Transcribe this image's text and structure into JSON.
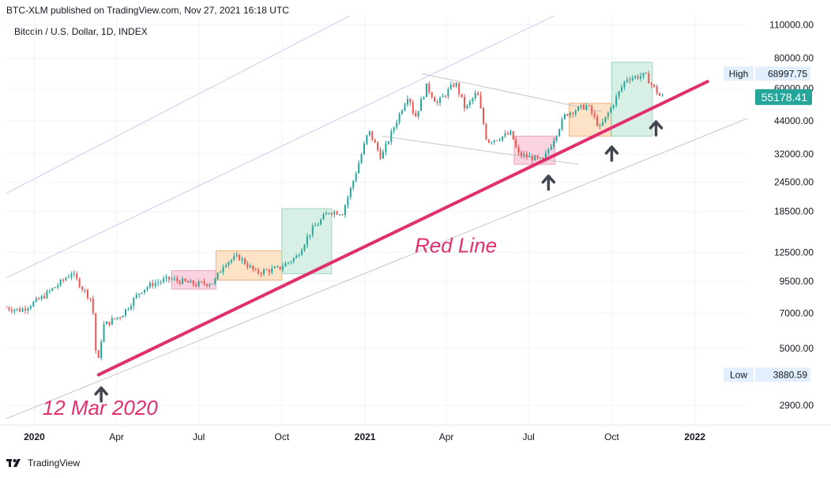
{
  "header": {
    "published_text": "BTC-XLM published on TradingView.com, Nov 27, 2021 16:18 UTC",
    "symbol_text": "Bitcoin / U.S. Dollar, 1D, INDEX"
  },
  "footer": {
    "brand": "TradingView"
  },
  "colors": {
    "up": "#26a69a",
    "down": "#ef5350",
    "trendline": "#e0306e",
    "channel_upper": "#c9cdf0",
    "channel_lower": "#c9c2d6",
    "last_price_bg": "#26a69a",
    "pink_box": "#f7c6d6",
    "orange_box": "#fbd9b5",
    "green_box": "#cbeadd"
  },
  "chart_data": {
    "type": "candlestick",
    "title": "",
    "y_scale": "log",
    "ylim": [
      2400,
      120000
    ],
    "xlim": [
      "2019-12-01",
      "2022-02-28"
    ],
    "y_ticks": [
      "110000.00",
      "80000.00",
      "60000.00",
      "44000.00",
      "32000.00",
      "24500.00",
      "18500.00",
      "12500.00",
      "9500.00",
      "7000.00",
      "5000.00",
      "2900.00"
    ],
    "x_ticks": [
      {
        "label": "2020",
        "date": "2020-01-01",
        "bold": true
      },
      {
        "label": "Apr",
        "date": "2020-04-01",
        "bold": false
      },
      {
        "label": "Jul",
        "date": "2020-07-01",
        "bold": false
      },
      {
        "label": "Oct",
        "date": "2020-10-01",
        "bold": false
      },
      {
        "label": "2021",
        "date": "2021-01-01",
        "bold": true
      },
      {
        "label": "Apr",
        "date": "2021-04-01",
        "bold": false
      },
      {
        "label": "Jul",
        "date": "2021-07-01",
        "bold": false
      },
      {
        "label": "Oct",
        "date": "2021-10-01",
        "bold": false
      },
      {
        "label": "2022",
        "date": "2022-01-01",
        "bold": true
      }
    ],
    "price_path": [
      [
        "2019-12-01",
        7400
      ],
      [
        "2019-12-20",
        7200
      ],
      [
        "2020-01-10",
        8000
      ],
      [
        "2020-02-01",
        9300
      ],
      [
        "2020-02-14",
        10300
      ],
      [
        "2020-02-28",
        8700
      ],
      [
        "2020-03-08",
        7900
      ],
      [
        "2020-03-12",
        4900
      ],
      [
        "2020-03-13",
        3900
      ],
      [
        "2020-03-20",
        6200
      ],
      [
        "2020-04-10",
        6900
      ],
      [
        "2020-05-01",
        8700
      ],
      [
        "2020-05-15",
        9300
      ],
      [
        "2020-06-01",
        9700
      ],
      [
        "2020-07-01",
        9200
      ],
      [
        "2020-07-21",
        9400
      ],
      [
        "2020-08-01",
        11300
      ],
      [
        "2020-08-17",
        12000
      ],
      [
        "2020-09-05",
        10300
      ],
      [
        "2020-09-30",
        10700
      ],
      [
        "2020-10-20",
        12000
      ],
      [
        "2020-11-05",
        15300
      ],
      [
        "2020-11-25",
        18500
      ],
      [
        "2020-12-10",
        18300
      ],
      [
        "2020-12-20",
        23500
      ],
      [
        "2021-01-08",
        40000
      ],
      [
        "2021-01-22",
        31000
      ],
      [
        "2021-02-10",
        46000
      ],
      [
        "2021-02-21",
        57000
      ],
      [
        "2021-02-28",
        45000
      ],
      [
        "2021-03-13",
        61000
      ],
      [
        "2021-03-25",
        52000
      ],
      [
        "2021-04-14",
        63500
      ],
      [
        "2021-04-25",
        49000
      ],
      [
        "2021-05-08",
        58000
      ],
      [
        "2021-05-19",
        36000
      ],
      [
        "2021-06-15",
        39000
      ],
      [
        "2021-06-22",
        32000
      ],
      [
        "2021-07-20",
        30000
      ],
      [
        "2021-08-14",
        47000
      ],
      [
        "2021-09-07",
        51000
      ],
      [
        "2021-09-21",
        41000
      ],
      [
        "2021-10-01",
        48000
      ],
      [
        "2021-10-20",
        66000
      ],
      [
        "2021-11-10",
        68000
      ],
      [
        "2021-11-27",
        55178
      ]
    ],
    "series": [
      {
        "name": "Red Line",
        "from": [
          "2020-03-12",
          3880
        ],
        "to": [
          "2022-01-15",
          64000
        ]
      }
    ],
    "channel_lines": [
      {
        "from": [
          "2019-12-01",
          9800
        ],
        "to": [
          "2022-02-28",
          290000
        ]
      },
      {
        "from": [
          "2019-12-01",
          2550
        ],
        "to": [
          "2022-02-28",
          45000
        ]
      },
      {
        "from": [
          "2019-12-01",
          22000
        ],
        "to": [
          "2020-12-15",
          120000
        ]
      }
    ],
    "pattern_lines": [
      {
        "from": [
          "2021-03-05",
          69000
        ],
        "to": [
          "2021-09-20",
          48000
        ]
      },
      {
        "from": [
          "2021-01-20",
          38000
        ],
        "to": [
          "2021-08-25",
          29000
        ]
      }
    ],
    "boxes": [
      {
        "color": "pink",
        "from": [
          "2020-06-01",
          8800
        ],
        "to": [
          "2020-07-20",
          10500
        ]
      },
      {
        "color": "orange",
        "from": [
          "2020-07-20",
          9600
        ],
        "to": [
          "2020-10-01",
          12700
        ]
      },
      {
        "color": "green",
        "from": [
          "2020-10-01",
          10200
        ],
        "to": [
          "2020-11-25",
          19000
        ]
      },
      {
        "color": "pink",
        "from": [
          "2021-06-15",
          29000
        ],
        "to": [
          "2021-07-30",
          38000
        ]
      },
      {
        "color": "orange",
        "from": [
          "2021-08-15",
          38000
        ],
        "to": [
          "2021-09-30",
          52000
        ]
      },
      {
        "color": "green",
        "from": [
          "2021-10-01",
          38000
        ],
        "to": [
          "2021-11-15",
          77000
        ]
      }
    ],
    "arrows": [
      {
        "date": "2020-03-15",
        "price": 3300
      },
      {
        "date": "2021-07-23",
        "price": 25000
      },
      {
        "date": "2021-10-01",
        "price": 33000
      },
      {
        "date": "2021-11-19",
        "price": 42000
      }
    ],
    "annotations": [
      {
        "text": "12 Mar 2020",
        "date": "2020-01-10",
        "price": 2650
      },
      {
        "text": "Red Line",
        "date": "2021-02-25",
        "price": 12500
      }
    ],
    "labels": {
      "high": {
        "title": "High",
        "value": "68997.75",
        "price": 68997.75
      },
      "low": {
        "title": "Low",
        "value": "3880.59",
        "price": 3880.59
      },
      "last": {
        "value": "55178.41",
        "price": 55178.41
      }
    }
  }
}
